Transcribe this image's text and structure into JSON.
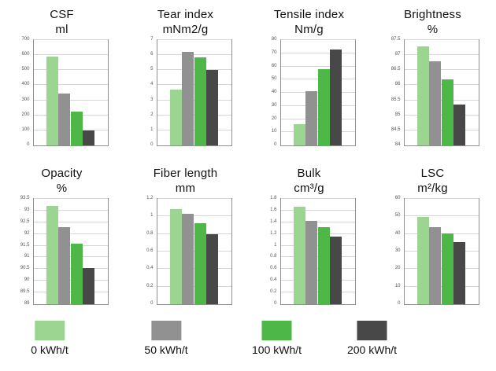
{
  "page": {
    "background": "#ffffff"
  },
  "palette": {
    "series_colors": [
      "#9cd592",
      "#919191",
      "#4db748",
      "#484848"
    ],
    "grid_color": "#d6d6d6",
    "axis_border_color": "#8f8f8f",
    "tick_label_color": "#555555",
    "title_color": "#111111"
  },
  "legend": {
    "items": [
      {
        "label": "0 kWh/t",
        "color": "#9cd592"
      },
      {
        "label": "50 kWh/t",
        "color": "#919191"
      },
      {
        "label": "100 kWh/t",
        "color": "#4db748"
      },
      {
        "label": "200 kWh/t",
        "color": "#484848"
      }
    ],
    "positions_pct": [
      10,
      33.5,
      55.8,
      75
    ]
  },
  "chart_data": [
    {
      "type": "bar",
      "title": "CSF",
      "unit": "ml",
      "categories": [
        "0 kWh/t",
        "50 kWh/t",
        "100 kWh/t",
        "200 kWh/t"
      ],
      "values": [
        590,
        345,
        225,
        97
      ],
      "ylim": [
        0,
        700
      ],
      "ystep": 100,
      "grid": true,
      "legend_position": "bottom"
    },
    {
      "type": "bar",
      "title": "Tear index",
      "unit": "mNm2/g",
      "categories": [
        "0 kWh/t",
        "50 kWh/t",
        "100 kWh/t",
        "200 kWh/t"
      ],
      "values": [
        3.7,
        6.2,
        5.85,
        5.0
      ],
      "ylim": [
        0,
        7
      ],
      "ystep": 1,
      "grid": true,
      "legend_position": "bottom"
    },
    {
      "type": "bar",
      "title": "Tensile index",
      "unit": "Nm/g",
      "categories": [
        "0 kWh/t",
        "50 kWh/t",
        "100 kWh/t",
        "200 kWh/t"
      ],
      "values": [
        16,
        41,
        58,
        73
      ],
      "ylim": [
        0,
        80
      ],
      "ystep": 10,
      "grid": true,
      "legend_position": "bottom"
    },
    {
      "type": "bar",
      "title": "Brightness",
      "unit": "%",
      "categories": [
        "0 kWh/t",
        "50 kWh/t",
        "100 kWh/t",
        "200 kWh/t"
      ],
      "values": [
        87.3,
        86.8,
        86.2,
        85.35
      ],
      "ylim": [
        84,
        87.5
      ],
      "ystep": 0.5,
      "grid": true,
      "legend_position": "bottom"
    },
    {
      "type": "bar",
      "title": "Opacity",
      "unit": "%",
      "categories": [
        "0 kWh/t",
        "50 kWh/t",
        "100 kWh/t",
        "200 kWh/t"
      ],
      "values": [
        93.2,
        92.3,
        91.6,
        90.55
      ],
      "ylim": [
        89,
        93.5
      ],
      "ystep": 0.5,
      "grid": true,
      "legend_position": "bottom"
    },
    {
      "type": "bar",
      "title": "Fiber length",
      "unit": "mm",
      "categories": [
        "0 kWh/t",
        "50 kWh/t",
        "100 kWh/t",
        "200 kWh/t"
      ],
      "values": [
        1.08,
        1.03,
        0.92,
        0.8
      ],
      "ylim": [
        0,
        1.2
      ],
      "ystep": 0.2,
      "grid": true,
      "legend_position": "bottom"
    },
    {
      "type": "bar",
      "title": "Bulk",
      "unit": "cm³/g",
      "categories": [
        "0 kWh/t",
        "50 kWh/t",
        "100 kWh/t",
        "200 kWh/t"
      ],
      "values": [
        1.66,
        1.43,
        1.31,
        1.15
      ],
      "ylim": [
        0,
        1.8
      ],
      "ystep": 0.2,
      "grid": true,
      "legend_position": "bottom"
    },
    {
      "type": "bar",
      "title": "LSC",
      "unit": "m²/kg",
      "categories": [
        "0 kWh/t",
        "50 kWh/t",
        "100 kWh/t",
        "200 kWh/t"
      ],
      "values": [
        49.5,
        44,
        40.5,
        35.5
      ],
      "ylim": [
        0,
        60
      ],
      "ystep": 10,
      "grid": true,
      "legend_position": "bottom"
    }
  ]
}
